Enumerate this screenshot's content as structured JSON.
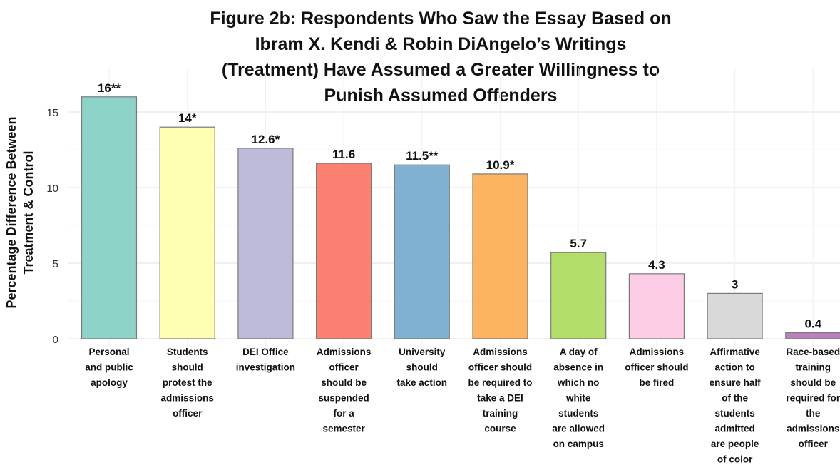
{
  "chart_data": {
    "type": "bar",
    "title_lines": [
      "Figure 2b: Respondents Who Saw the Essay Based on",
      "Ibram X. Kendi & Robin DiAngelo’s Writings",
      "(Treatment) Have Assumed a Greater Willingness to",
      "Punish Assumed Offenders"
    ],
    "ylabel_lines": [
      "Percentage Difference Between",
      "Treatment & Control"
    ],
    "xlabel": "",
    "ylim": [
      0,
      16.5
    ],
    "yticks": [
      0,
      5,
      10,
      15
    ],
    "grid": true,
    "legend": "none",
    "categories": [
      [
        "Personal",
        "and public",
        "apology"
      ],
      [
        "Students",
        "should",
        "protest the",
        "admissions",
        "officer"
      ],
      [
        "DEI Office",
        "investigation"
      ],
      [
        "Admissions",
        "officer",
        "should be",
        "suspended",
        "for a",
        "semester"
      ],
      [
        "University",
        "should",
        "take action"
      ],
      [
        "Admissions",
        "officer should",
        "be required to",
        "take a DEI",
        "training",
        "course"
      ],
      [
        "A day of",
        "absence in",
        "which no",
        "white",
        "students",
        "are allowed",
        "on campus"
      ],
      [
        "Admissions",
        "officer should",
        "be fired"
      ],
      [
        "Affirmative",
        "action to",
        "ensure half",
        "of the",
        "students",
        "admitted",
        "are people",
        "of color"
      ],
      [
        "Race-based",
        "training",
        "should be",
        "required for",
        "the",
        "admissions",
        "officer"
      ]
    ],
    "values": [
      16,
      14,
      12.6,
      11.6,
      11.5,
      10.9,
      5.7,
      4.3,
      3,
      0.4
    ],
    "data_labels": [
      "16**",
      "14*",
      "12.6*",
      "11.6",
      "11.5**",
      "10.9*",
      "5.7",
      "4.3",
      "3",
      "0.4"
    ],
    "colors": [
      "#8dd3c7",
      "#ffffb3",
      "#bebada",
      "#fb8072",
      "#80b1d3",
      "#fdb462",
      "#b3de69",
      "#fccde5",
      "#d9d9d9",
      "#bc80bd"
    ]
  }
}
